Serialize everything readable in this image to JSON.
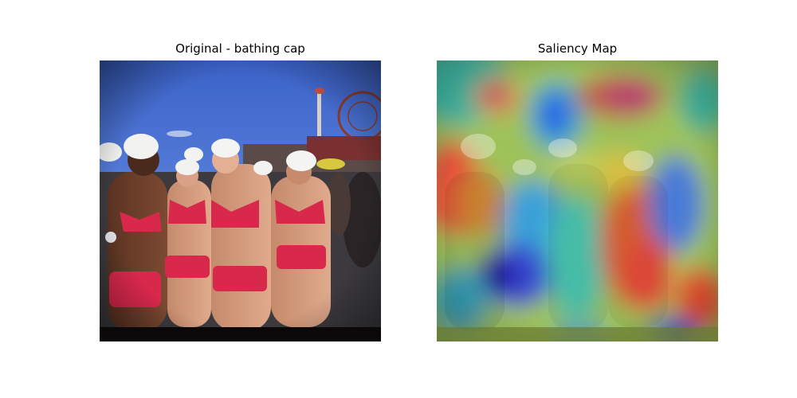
{
  "figure": {
    "left_title": "Original - bathing cap",
    "right_title": "Saliency Map"
  }
}
